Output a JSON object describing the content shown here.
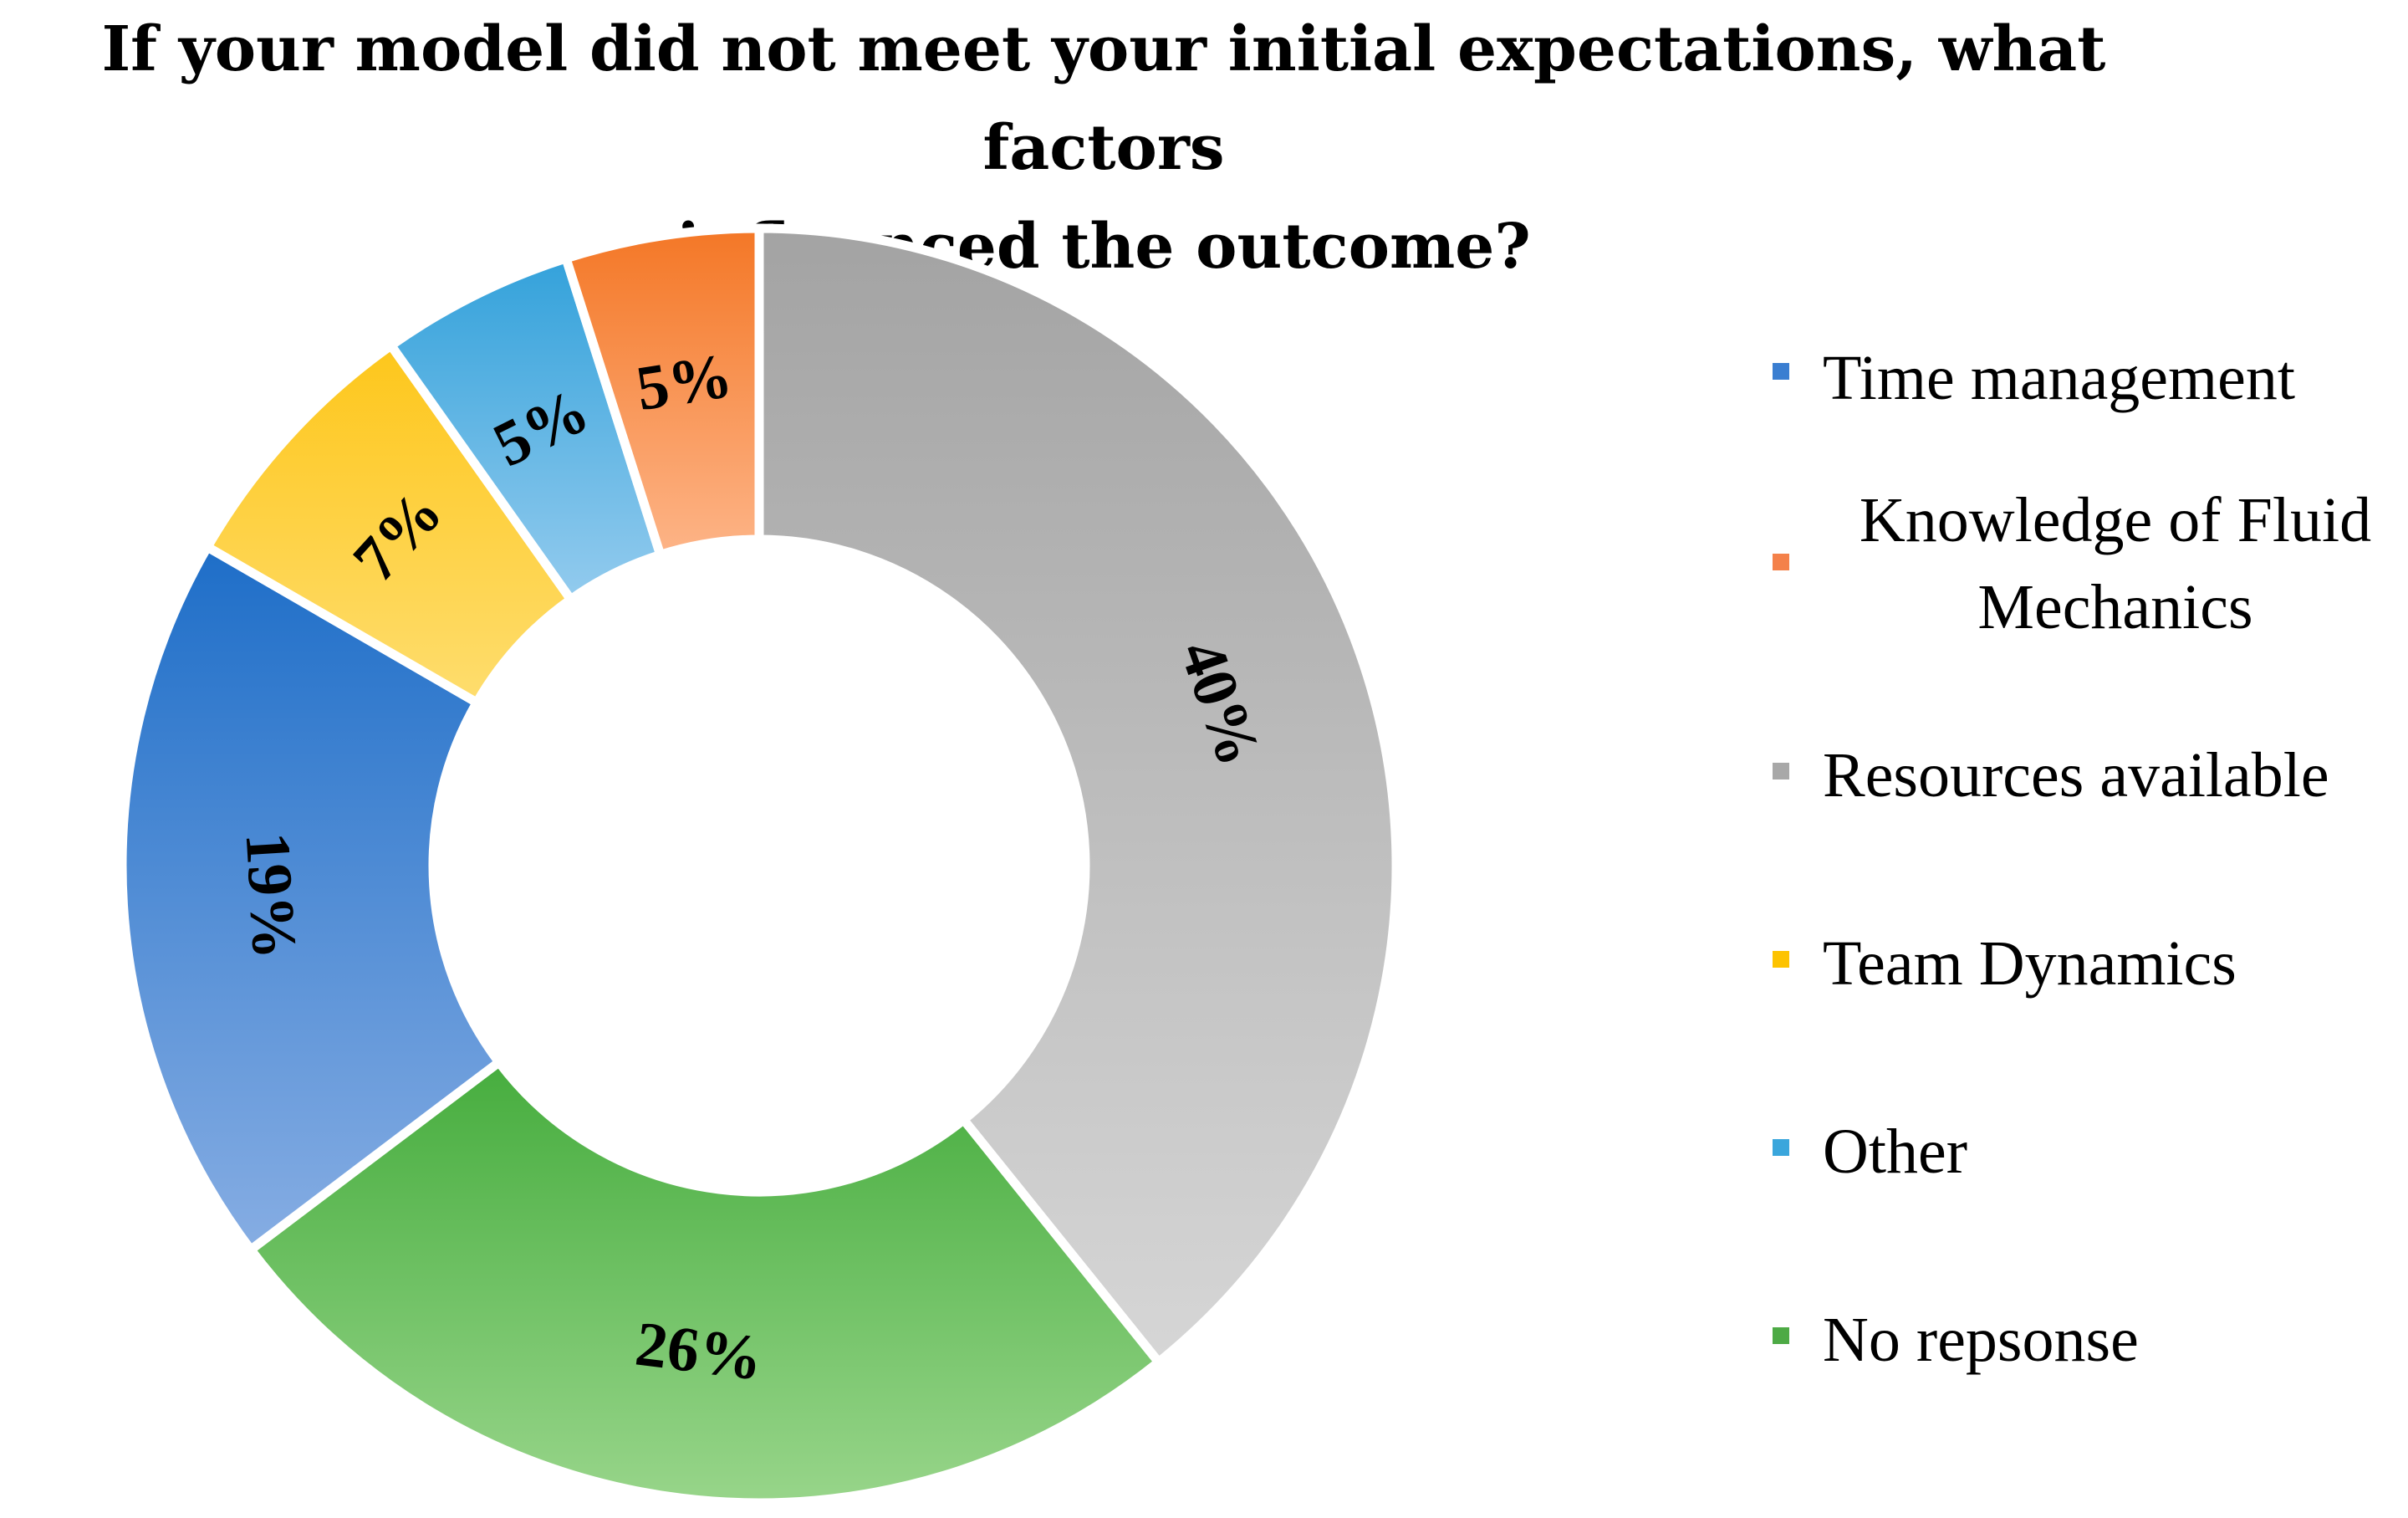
{
  "chart_data": {
    "type": "pie",
    "variant": "donut",
    "title": "If your model did not meet your initial expectations, what factors influenced the outcome?",
    "title_lines": [
      "If your model did not meet your initial expectations, what factors",
      "influenced the outcome?"
    ],
    "categories": [
      "Time management",
      "Knowledge of Fluid Mechanics",
      "Resources available",
      "Team Dynamics",
      "Other",
      "No repsonse"
    ],
    "values": [
      19,
      5,
      40,
      7,
      5,
      26
    ],
    "unit": "%",
    "data_labels": [
      "19%",
      "5%",
      "40%",
      "7%",
      "5%",
      "26%"
    ],
    "colors": {
      "Time management": [
        "#1e6ec8",
        "#86ade3"
      ],
      "Knowledge of Fluid Mechanics": [
        "#f47726",
        "#fdb487"
      ],
      "Resources available": [
        "#a3a3a3",
        "#d6d6d6"
      ],
      "Team Dynamics": [
        "#fdbf00",
        "#fedd6e"
      ],
      "Other": [
        "#2b9ed9",
        "#93cbee"
      ],
      "No repsonse": [
        "#46ad3e",
        "#98d58a"
      ]
    },
    "legend_swatch_colors": [
      "#3a7ed1",
      "#f4814a",
      "#a8a8a8",
      "#fdc300",
      "#3aa6dc",
      "#4daa45"
    ],
    "legend": {
      "position": "right",
      "items": [
        {
          "lines": [
            "Time management"
          ]
        },
        {
          "lines": [
            "Knowledge of Fluid",
            "Mechanics"
          ]
        },
        {
          "lines": [
            "Resources available"
          ]
        },
        {
          "lines": [
            "Team Dynamics"
          ]
        },
        {
          "lines": [
            "Other"
          ]
        },
        {
          "lines": [
            "No repsonse"
          ]
        }
      ]
    },
    "start_angle_deg": 0,
    "draw_order": [
      "Resources available",
      "No repsonse",
      "Time management",
      "Team Dynamics",
      "Other",
      "Knowledge of Fluid Mechanics"
    ]
  }
}
